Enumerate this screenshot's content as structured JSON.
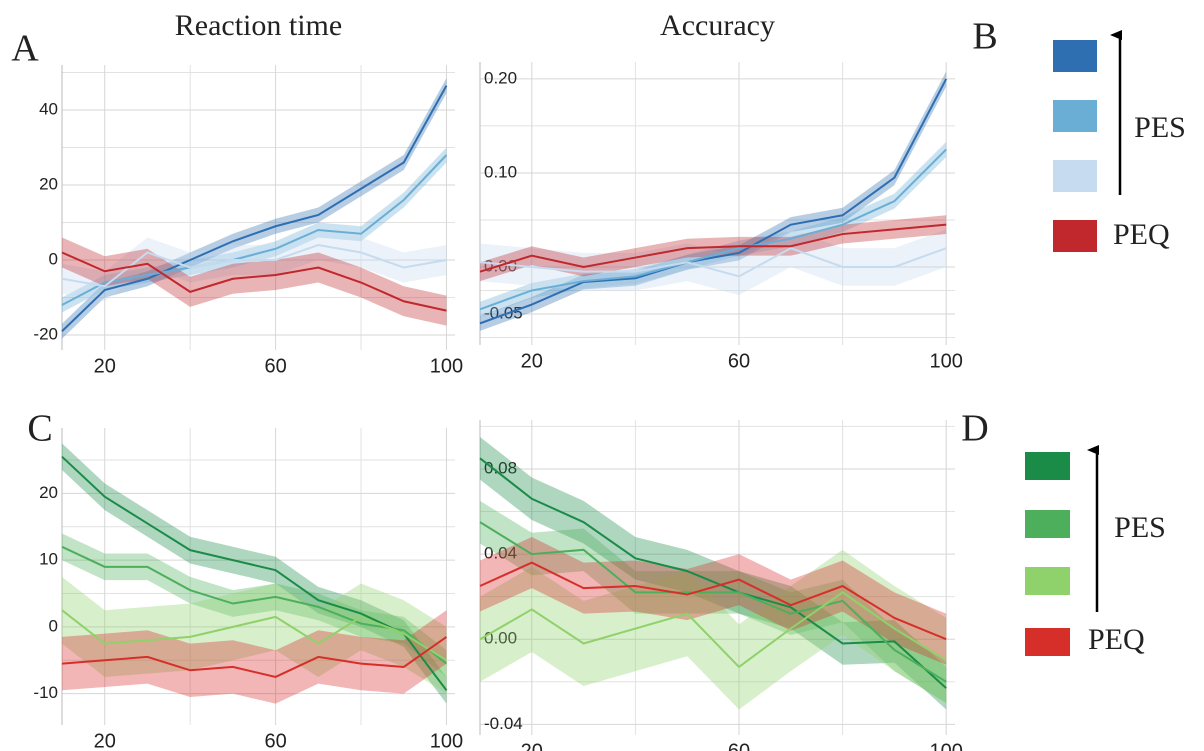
{
  "chart_data": [
    {
      "type": "line",
      "title": "Reaction time",
      "panel_label": "A",
      "x": [
        10,
        20,
        30,
        40,
        50,
        60,
        70,
        80,
        90,
        100
      ],
      "xlim": [
        10,
        102
      ],
      "xticks": [
        20,
        60,
        100
      ],
      "minor_xticks": [
        40,
        80
      ],
      "ylim": [
        -24,
        52
      ],
      "yticks": [
        -20,
        0,
        20,
        40
      ],
      "minor_yticks": [
        -10,
        10,
        30,
        50
      ],
      "grid": true,
      "legend_label": "PES",
      "series": [
        {
          "color": "#2e6fb2",
          "values": [
            -19,
            -8,
            -5,
            0,
            5,
            9,
            12,
            19,
            26,
            46.5
          ],
          "errors": [
            2,
            2,
            2,
            2,
            2,
            2,
            2,
            2,
            2,
            2
          ]
        },
        {
          "color": "#6aaed6",
          "values": [
            -12,
            -6,
            -4,
            -2,
            0,
            3,
            8,
            7,
            16,
            28
          ],
          "errors": [
            2,
            2,
            2,
            2,
            2,
            2,
            2,
            2,
            2,
            2
          ]
        },
        {
          "color": "#c6dbef",
          "values": [
            -5,
            -7,
            2,
            -2,
            0,
            0,
            4,
            2,
            -2,
            0
          ],
          "errors": [
            4,
            4,
            4,
            4,
            4,
            4,
            4,
            4,
            4,
            4
          ]
        },
        {
          "name": "PEQ",
          "color": "#c0282d",
          "values": [
            2,
            -3,
            -1,
            -8.5,
            -5,
            -4,
            -2,
            -6,
            -11,
            -13.5
          ],
          "errors": [
            4,
            4,
            4,
            4,
            4,
            4,
            4,
            4,
            4,
            4
          ]
        }
      ]
    },
    {
      "type": "line",
      "title": "Accuracy",
      "panel_label": "B",
      "x": [
        10,
        20,
        30,
        40,
        50,
        60,
        70,
        80,
        90,
        100
      ],
      "xlim": [
        10,
        101.7
      ],
      "xticks": [
        20,
        60,
        100
      ],
      "minor_xticks": [
        40,
        80
      ],
      "ylim": [
        -0.083,
        0.218
      ],
      "yticks": [
        {
          "value": 0.2,
          "label": "0.20"
        },
        {
          "value": 0.1,
          "label": "0.10"
        },
        {
          "value": 0,
          "label": "0.00"
        },
        -0.05
      ],
      "minor_yticks": [
        -0.075,
        -0.025,
        0.05,
        0.15
      ],
      "grid": true,
      "series": [
        {
          "color": "#2e6fb2",
          "values": [
            -0.06,
            -0.04,
            -0.016,
            -0.012,
            0.005,
            0.015,
            0.045,
            0.055,
            0.095,
            0.2
          ],
          "errors": [
            0.008,
            0.008,
            0.008,
            0.008,
            0.008,
            0.008,
            0.008,
            0.008,
            0.008,
            0.008
          ]
        },
        {
          "color": "#6aaed6",
          "values": [
            -0.045,
            -0.025,
            -0.015,
            -0.01,
            0.005,
            0.02,
            0.03,
            0.045,
            0.07,
            0.125
          ],
          "errors": [
            0.008,
            0.008,
            0.008,
            0.008,
            0.008,
            0.008,
            0.008,
            0.008,
            0.008,
            0.008
          ]
        },
        {
          "color": "#c6dbef",
          "values": [
            0.005,
            0,
            -0.005,
            -0.005,
            0.005,
            -0.01,
            0.02,
            0,
            0,
            0.02
          ],
          "errors": [
            0.02,
            0.02,
            0.02,
            0.02,
            0.02,
            0.02,
            0.02,
            0.02,
            0.02,
            0.02
          ]
        },
        {
          "name": "PEQ",
          "color": "#c0282d",
          "values": [
            -0.005,
            0.012,
            0,
            0.01,
            0.02,
            0.022,
            0.022,
            0.035,
            0.04,
            0.045
          ],
          "errors": [
            0.01,
            0.01,
            0.01,
            0.01,
            0.01,
            0.01,
            0.01,
            0.01,
            0.01,
            0.01
          ]
        }
      ]
    },
    {
      "type": "line",
      "panel_label": "C",
      "x": [
        10,
        20,
        30,
        40,
        50,
        60,
        70,
        80,
        90,
        100
      ],
      "xlim": [
        10,
        102
      ],
      "xticks": [
        20,
        60,
        100
      ],
      "minor_xticks": [
        40,
        80
      ],
      "ylim": [
        -14.7,
        29.8
      ],
      "yticks": [
        -10,
        0,
        10,
        20
      ],
      "minor_yticks": [
        -5,
        5,
        15,
        25
      ],
      "grid": true,
      "legend_label": "PES",
      "series": [
        {
          "color": "#1a8c48",
          "values": [
            25.5,
            19.5,
            15.5,
            11.5,
            10,
            8.5,
            4,
            2,
            -1,
            -9.5
          ],
          "errors": [
            2,
            2,
            2,
            2,
            2,
            2,
            2,
            2,
            2,
            2
          ]
        },
        {
          "color": "#4daf5b",
          "values": [
            12,
            9,
            9,
            5.5,
            3.5,
            4.5,
            3,
            0.5,
            -0.5,
            -5.5
          ],
          "errors": [
            2,
            2,
            2,
            2,
            2,
            2,
            2,
            2,
            2,
            2
          ]
        },
        {
          "color": "#8fd16a",
          "values": [
            2.5,
            -2.5,
            -2,
            -1.5,
            0,
            1.5,
            -2.5,
            1.5,
            -1,
            -5
          ],
          "errors": [
            5,
            5,
            5,
            5,
            5,
            5,
            5,
            5,
            5,
            5
          ]
        },
        {
          "name": "PEQ",
          "color": "#d62f2a",
          "values": [
            -5.5,
            -5,
            -4.5,
            -6.5,
            -6,
            -7.5,
            -4.5,
            -5.5,
            -6,
            -1.5
          ],
          "errors": [
            4,
            4,
            4,
            4,
            4,
            4,
            4,
            4,
            4,
            4
          ]
        }
      ]
    },
    {
      "type": "line",
      "panel_label": "D",
      "x": [
        10,
        20,
        30,
        40,
        50,
        60,
        70,
        80,
        90,
        100
      ],
      "xlim": [
        10,
        101.7
      ],
      "xticks": [
        20,
        60,
        100
      ],
      "minor_xticks": [
        40,
        80
      ],
      "ylim": [
        -0.045,
        0.103
      ],
      "yticks": [
        0.08,
        0.04,
        {
          "value": 0,
          "label": "0.00"
        },
        -0.04
      ],
      "minor_yticks": [
        -0.02,
        0.02,
        0.06,
        0.1
      ],
      "grid": true,
      "series": [
        {
          "color": "#1a8c48",
          "values": [
            0.085,
            0.066,
            0.055,
            0.038,
            0.032,
            0.022,
            0.015,
            -0.002,
            -0.001,
            -0.023
          ],
          "errors": [
            0.01,
            0.01,
            0.01,
            0.01,
            0.01,
            0.01,
            0.01,
            0.01,
            0.01,
            0.01
          ]
        },
        {
          "color": "#4daf5b",
          "values": [
            0.055,
            0.04,
            0.042,
            0.022,
            0.022,
            0.022,
            0.012,
            0.018,
            -0.005,
            -0.02
          ],
          "errors": [
            0.01,
            0.01,
            0.01,
            0.01,
            0.01,
            0.01,
            0.01,
            0.01,
            0.01,
            0.01
          ]
        },
        {
          "color": "#8fd16a",
          "values": [
            0,
            0.014,
            -0.002,
            0.005,
            0.012,
            -0.013,
            0.005,
            0.022,
            0.005,
            -0.01
          ],
          "errors": [
            0.02,
            0.02,
            0.02,
            0.02,
            0.02,
            0.02,
            0.02,
            0.02,
            0.02,
            0.02
          ]
        },
        {
          "name": "PEQ",
          "color": "#d62f2a",
          "values": [
            0.025,
            0.036,
            0.024,
            0.025,
            0.021,
            0.028,
            0.016,
            0.025,
            0.01,
            0
          ],
          "errors": [
            0.012,
            0.012,
            0.012,
            0.012,
            0.012,
            0.012,
            0.012,
            0.012,
            0.012,
            0.012
          ]
        }
      ]
    }
  ]
}
